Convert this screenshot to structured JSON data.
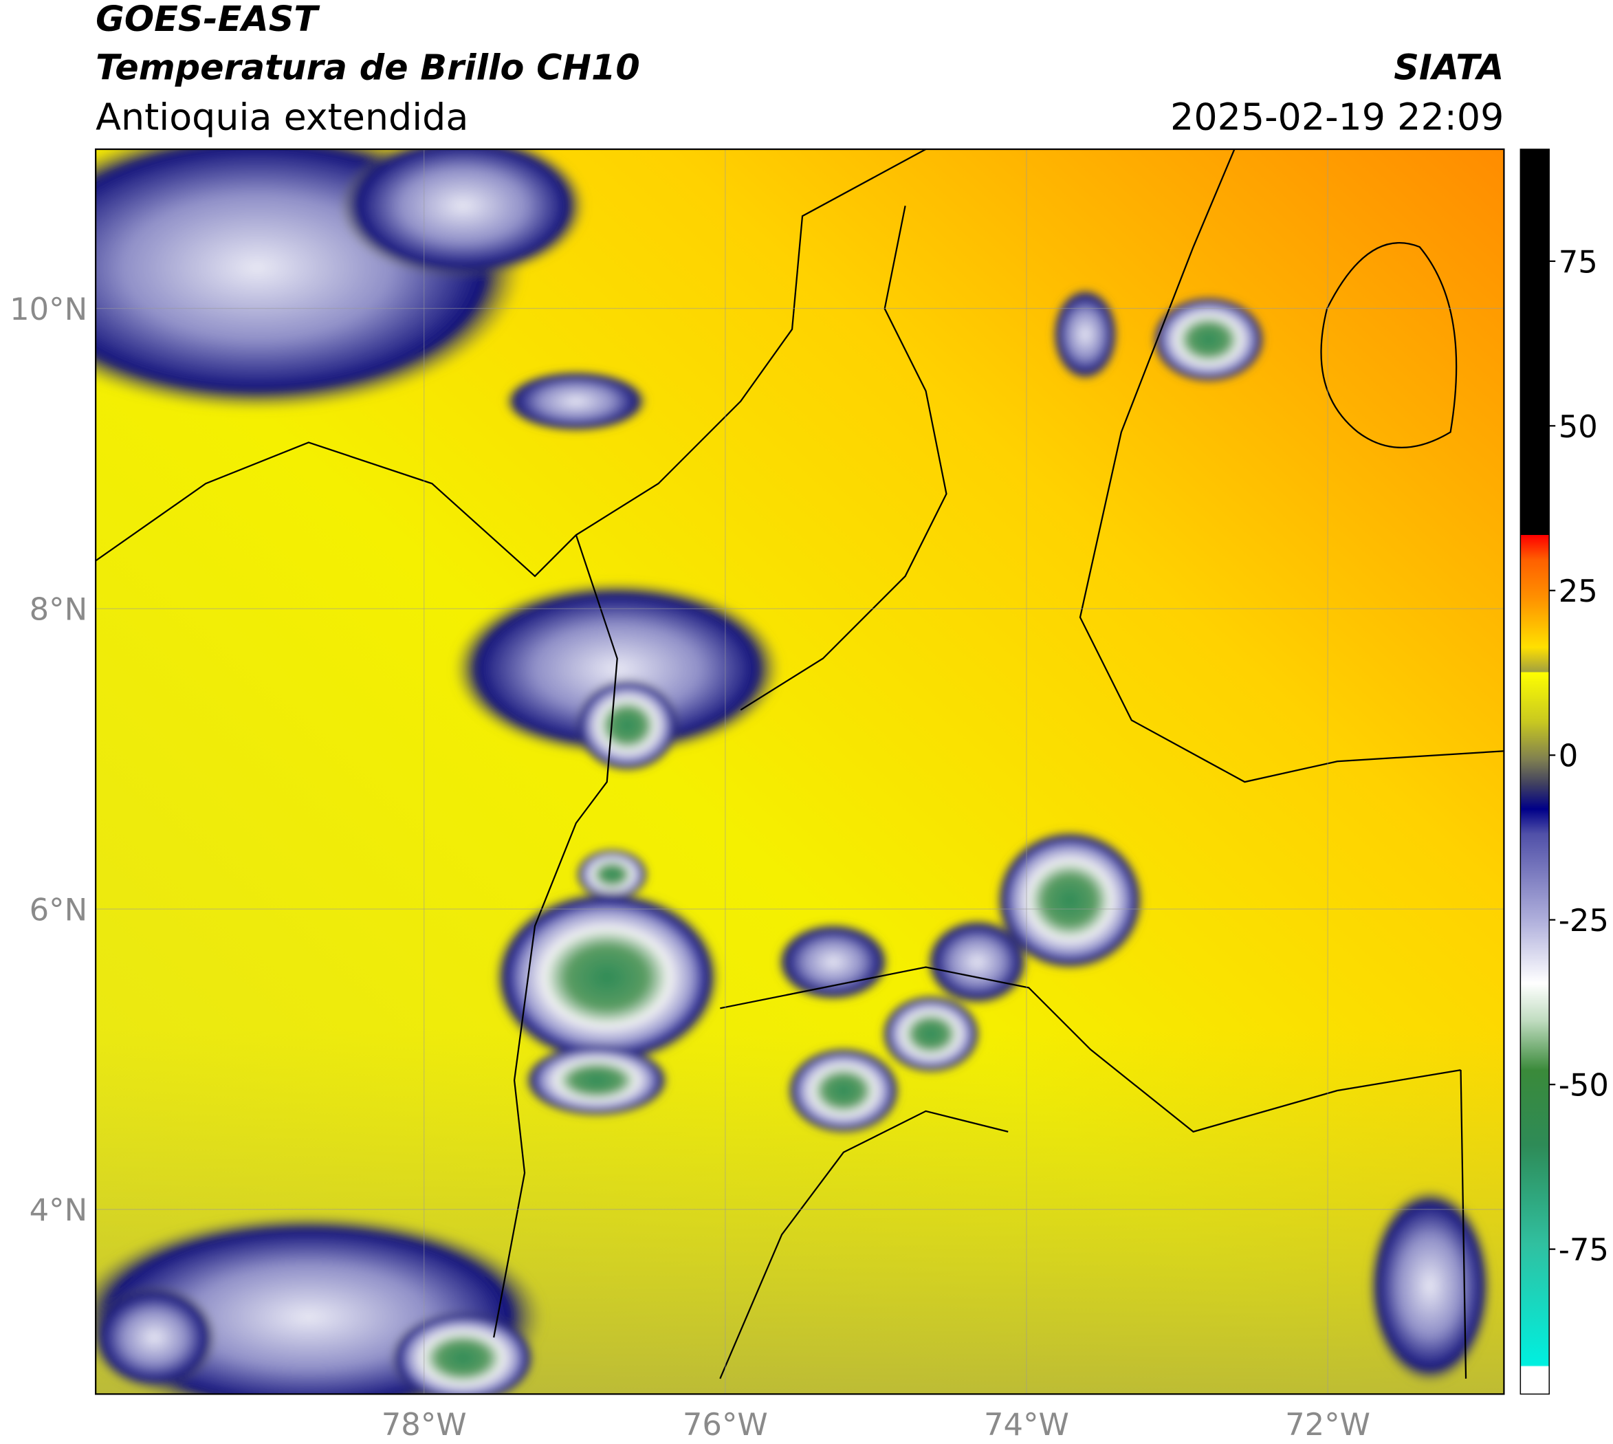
{
  "header": {
    "title": "GOES-EAST",
    "subtitle": "Temperatura de Brillo CH10",
    "region": "Antioquia extendida",
    "source": "SIATA",
    "datetime": "2025-02-19 22:09"
  },
  "map": {
    "xlim": [
      -80.18,
      -70.83
    ],
    "ylim": [
      2.77,
      11.06
    ],
    "xticks": [
      {
        "value": -78,
        "label": "78°W"
      },
      {
        "value": -76,
        "label": "76°W"
      },
      {
        "value": -74,
        "label": "74°W"
      },
      {
        "value": -72,
        "label": "72°W"
      }
    ],
    "yticks": [
      {
        "value": 4,
        "label": "4°N"
      },
      {
        "value": 6,
        "label": "6°N"
      },
      {
        "value": 8,
        "label": "8°N"
      },
      {
        "value": 10,
        "label": "10°N"
      }
    ],
    "grid": true
  },
  "colorbar": {
    "lim": [
      -97,
      92
    ],
    "ticks": [
      -75,
      -50,
      -25,
      0,
      25,
      50,
      75
    ]
  }
}
